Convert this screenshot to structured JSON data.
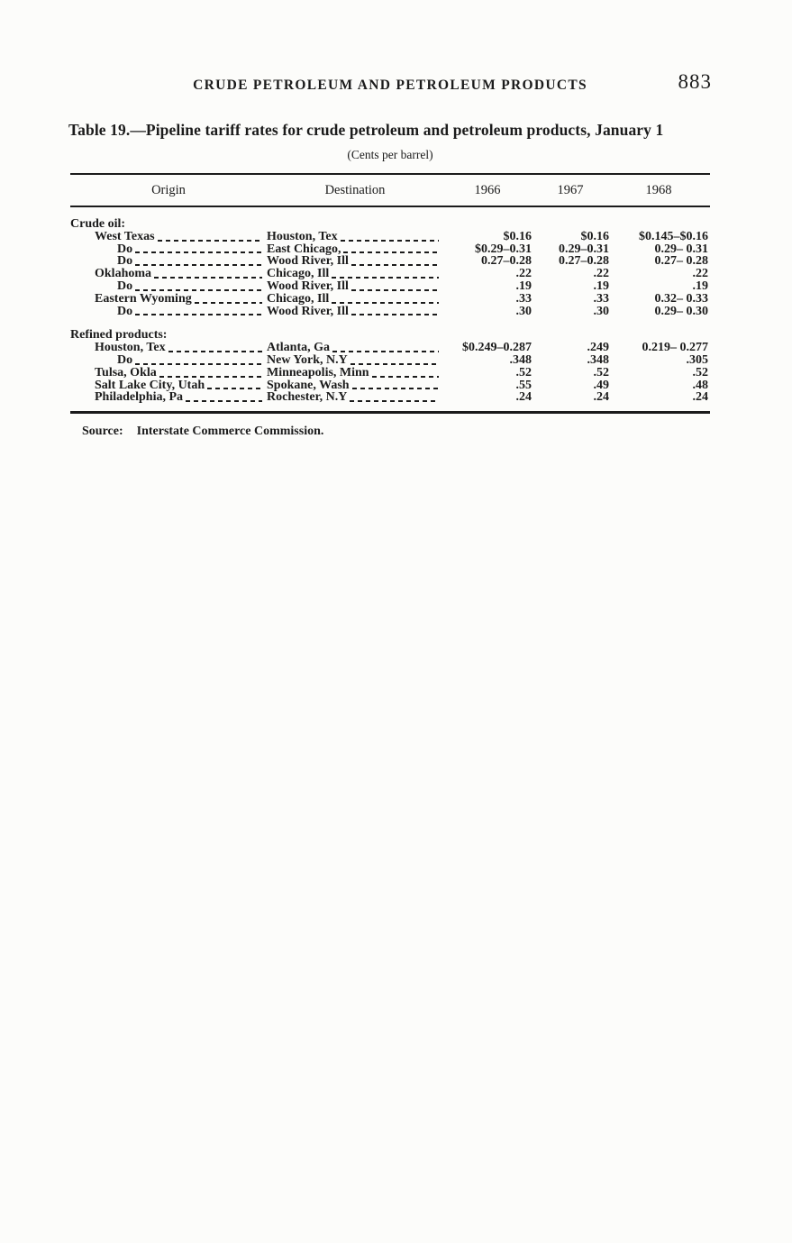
{
  "page": {
    "running_head": "CRUDE PETROLEUM AND PETROLEUM PRODUCTS",
    "page_number": "883"
  },
  "table": {
    "title": "Table 19.—Pipeline tariff rates for crude petroleum and petroleum products, January 1",
    "subtitle": "(Cents per barrel)",
    "columns": [
      "Origin",
      "Destination",
      "1966",
      "1967",
      "1968"
    ],
    "sections": [
      {
        "label": "Crude oil:",
        "rows": [
          {
            "origin": "West Texas",
            "ditto": false,
            "destination": "Houston, Tex",
            "v1966": "$0.16",
            "v1967": "$0.16",
            "v1968": "$0.145–$0.16"
          },
          {
            "origin": "Do",
            "ditto": true,
            "destination": "East Chicago,",
            "v1966": "$0.29–0.31",
            "v1967": "0.29–0.31",
            "v1968": "0.29– 0.31"
          },
          {
            "origin": "Do",
            "ditto": true,
            "destination": "Wood River, Ill",
            "v1966": "0.27–0.28",
            "v1967": "0.27–0.28",
            "v1968": "0.27– 0.28"
          },
          {
            "origin": "Oklahoma",
            "ditto": false,
            "destination": "Chicago, Ill",
            "v1966": ".22",
            "v1967": ".22",
            "v1968": ".22"
          },
          {
            "origin": "Do",
            "ditto": true,
            "destination": "Wood River, Ill",
            "v1966": ".19",
            "v1967": ".19",
            "v1968": ".19"
          },
          {
            "origin": "Eastern Wyoming",
            "ditto": false,
            "destination": "Chicago, Ill",
            "v1966": ".33",
            "v1967": ".33",
            "v1968": "0.32– 0.33"
          },
          {
            "origin": "Do",
            "ditto": true,
            "destination": "Wood River, Ill",
            "v1966": ".30",
            "v1967": ".30",
            "v1968": "0.29– 0.30"
          }
        ]
      },
      {
        "label": "Refined products:",
        "rows": [
          {
            "origin": "Houston, Tex",
            "ditto": false,
            "destination": "Atlanta, Ga",
            "v1966": "$0.249–0.287",
            "v1967": ".249",
            "v1968": "0.219– 0.277"
          },
          {
            "origin": "Do",
            "ditto": true,
            "destination": "New York, N.Y",
            "v1966": ".348",
            "v1967": ".348",
            "v1968": ".305"
          },
          {
            "origin": "Tulsa, Okla",
            "ditto": false,
            "destination": "Minneapolis, Minn",
            "v1966": ".52",
            "v1967": ".52",
            "v1968": ".52"
          },
          {
            "origin": "Salt Lake City, Utah",
            "ditto": false,
            "destination": "Spokane, Wash",
            "v1966": ".55",
            "v1967": ".49",
            "v1968": ".48"
          },
          {
            "origin": "Philadelphia, Pa",
            "ditto": false,
            "destination": "Rochester, N.Y",
            "v1966": ".24",
            "v1967": ".24",
            "v1968": ".24"
          }
        ]
      }
    ],
    "source_label": "Source:",
    "source_text": "Interstate Commerce Commission."
  }
}
